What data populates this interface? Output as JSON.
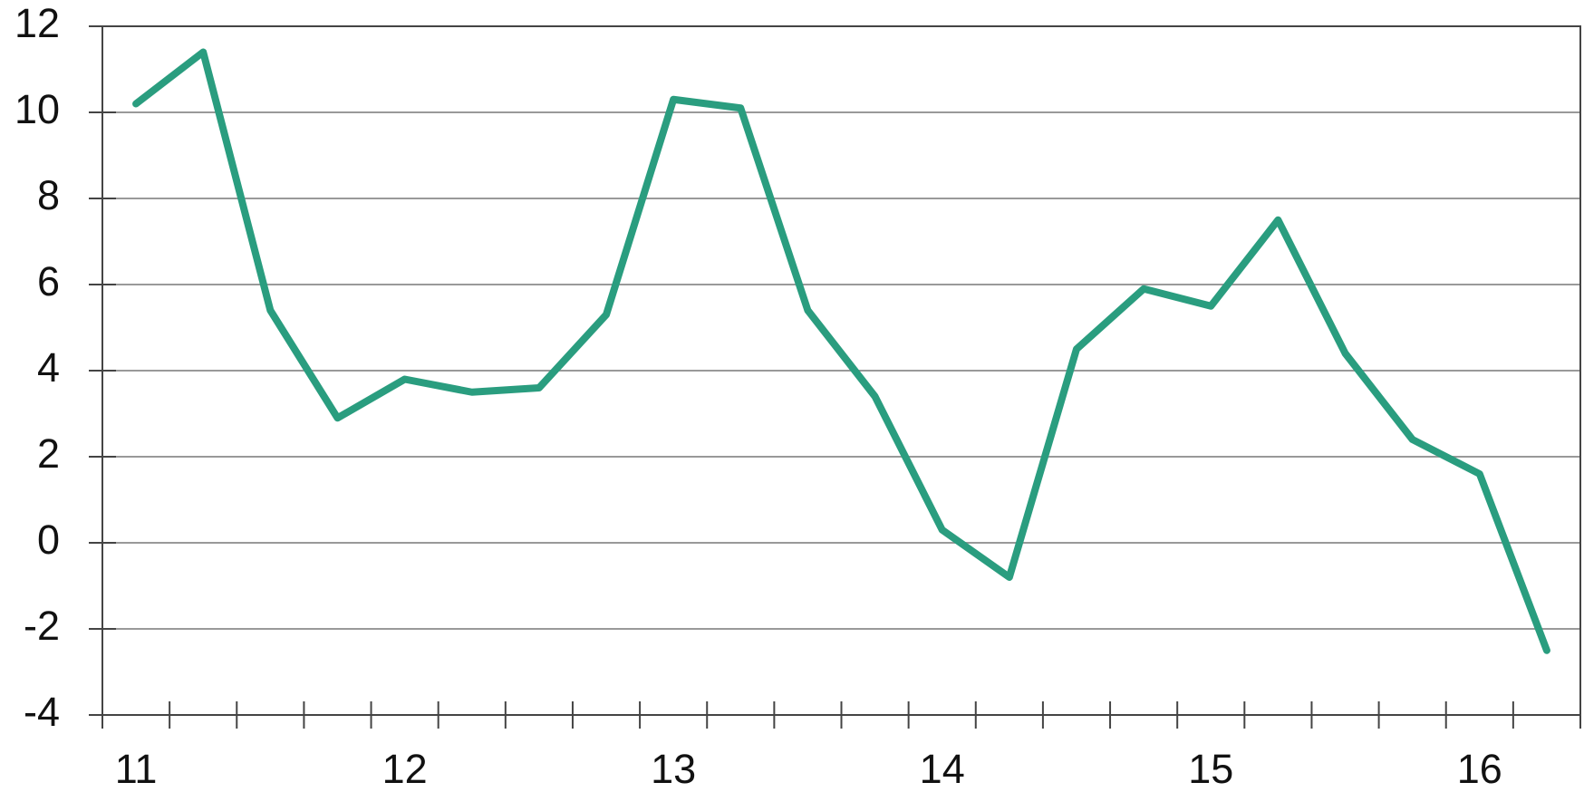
{
  "chart_data": {
    "type": "line",
    "categories": [
      "11",
      null,
      null,
      null,
      "12",
      null,
      null,
      null,
      "13",
      null,
      null,
      null,
      "14",
      null,
      null,
      null,
      "15",
      null,
      null,
      null,
      "16",
      null
    ],
    "series": [
      {
        "color": "#2a9d7f",
        "values": [
          10.2,
          11.4,
          5.4,
          2.9,
          3.8,
          3.5,
          3.6,
          5.3,
          10.3,
          10.1,
          5.4,
          3.4,
          0.3,
          -0.8,
          4.5,
          5.9,
          5.5,
          7.5,
          4.4,
          2.4,
          1.6,
          -2.5
        ]
      }
    ],
    "ylim": [
      -4,
      12
    ],
    "yticks": [
      -4,
      -2,
      0,
      2,
      4,
      6,
      8,
      10,
      12
    ],
    "grid": true
  }
}
